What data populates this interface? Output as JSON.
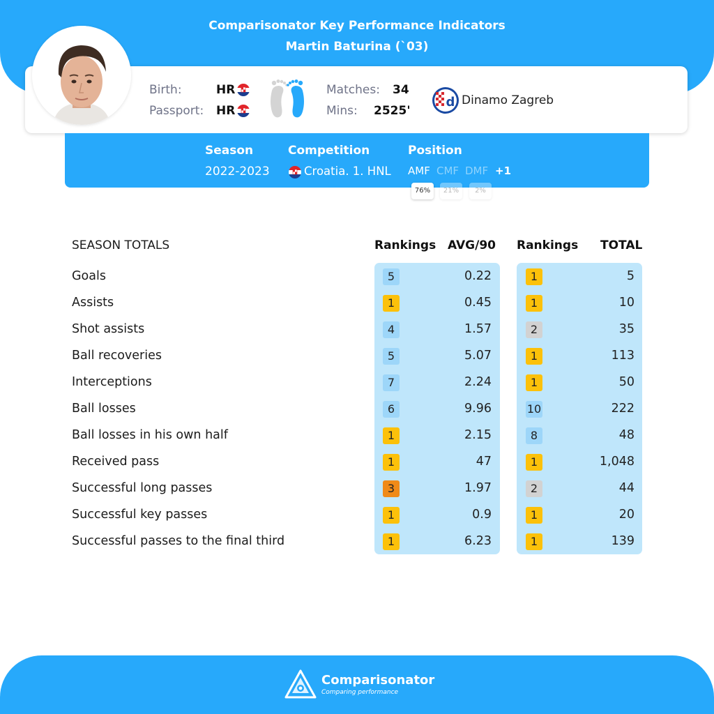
{
  "header": {
    "title": "Comparisonator Key Performance Indicators",
    "player": "Martin Baturina (`03)"
  },
  "profile": {
    "birth_label": "Birth:",
    "birth_value": "HR",
    "passport_label": "Passport:",
    "passport_value": "HR",
    "matches_label": "Matches:",
    "matches_value": "34",
    "mins_label": "Mins:",
    "mins_value": "2525'",
    "club": "Dinamo Zagreb"
  },
  "season_info": {
    "season_label": "Season",
    "season_value": "2022-2023",
    "competition_label": "Competition",
    "competition_value": "Croatia. 1. HNL",
    "position_label": "Position",
    "positions": [
      "AMF",
      "CMF",
      "DMF"
    ],
    "positions_more": "+1",
    "position_pcts": [
      "76%",
      "21%",
      "2%"
    ]
  },
  "table": {
    "section_title": "SEASON TOTALS",
    "col_rankings": "Rankings",
    "col_avg": "AVG/90",
    "col_rankings2": "Rankings",
    "col_total": "TOTAL",
    "rows": [
      {
        "label": "Goals",
        "rank_avg": "5",
        "avg": "0.22",
        "rank_total": "1",
        "total": "5"
      },
      {
        "label": "Assists",
        "rank_avg": "1",
        "avg": "0.45",
        "rank_total": "1",
        "total": "10"
      },
      {
        "label": "Shot assists",
        "rank_avg": "4",
        "avg": "1.57",
        "rank_total": "2",
        "total": "35"
      },
      {
        "label": "Ball recoveries",
        "rank_avg": "5",
        "avg": "5.07",
        "rank_total": "1",
        "total": "113"
      },
      {
        "label": "Interceptions",
        "rank_avg": "7",
        "avg": "2.24",
        "rank_total": "1",
        "total": "50"
      },
      {
        "label": "Ball losses",
        "rank_avg": "6",
        "avg": "9.96",
        "rank_total": "10",
        "total": "222"
      },
      {
        "label": "Ball losses in his own half",
        "rank_avg": "1",
        "avg": "2.15",
        "rank_total": "8",
        "total": "48"
      },
      {
        "label": "Received pass",
        "rank_avg": "1",
        "avg": "47",
        "rank_total": "1",
        "total": "1,048"
      },
      {
        "label": "Successful long passes",
        "rank_avg": "3",
        "avg": "1.97",
        "rank_total": "2",
        "total": "44"
      },
      {
        "label": "Successful key passes",
        "rank_avg": "1",
        "avg": "0.9",
        "rank_total": "1",
        "total": "20"
      },
      {
        "label": "Successful passes to the final third",
        "rank_avg": "1",
        "avg": "6.23",
        "rank_total": "1",
        "total": "139"
      }
    ]
  },
  "colors": {
    "brand_blue": "#27a9fb",
    "column_bg": "#bfe6fb",
    "rank_gold": "#fcc10a",
    "rank_silver": "#d2d2d2",
    "rank_bronze": "#f08a18",
    "rank_other": "#9dd6f9"
  },
  "icons": [
    "player-photo",
    "croatia-flag-icon",
    "feet-icon",
    "dinamo-zagreb-crest-icon",
    "comparisonator-logo-icon"
  ],
  "footer": {
    "brand": "Comparisonator",
    "tagline": "Comparing performance"
  }
}
